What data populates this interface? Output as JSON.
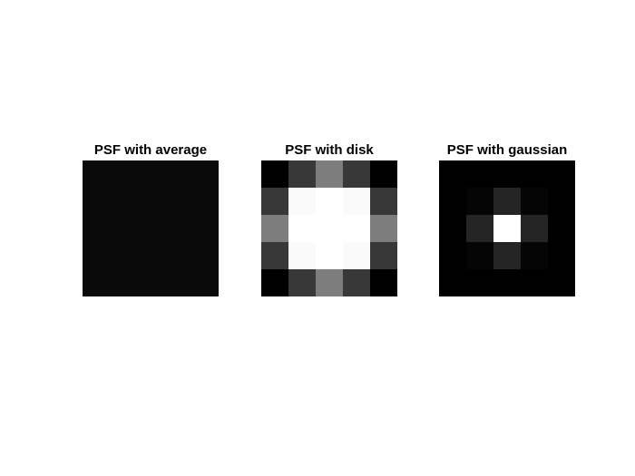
{
  "chart_data": [
    {
      "type": "heatmap",
      "title": "PSF with average",
      "rows": 5,
      "cols": 5,
      "colormap": "gray",
      "values": [
        [
          0.04,
          0.04,
          0.04,
          0.04,
          0.04
        ],
        [
          0.04,
          0.04,
          0.04,
          0.04,
          0.04
        ],
        [
          0.04,
          0.04,
          0.04,
          0.04,
          0.04
        ],
        [
          0.04,
          0.04,
          0.04,
          0.04,
          0.04
        ],
        [
          0.04,
          0.04,
          0.04,
          0.04,
          0.04
        ]
      ]
    },
    {
      "type": "heatmap",
      "title": "PSF with disk",
      "rows": 5,
      "cols": 5,
      "colormap": "gray",
      "values": [
        [
          0.0,
          0.22,
          0.49,
          0.22,
          0.0
        ],
        [
          0.22,
          0.98,
          1.0,
          0.98,
          0.22
        ],
        [
          0.49,
          1.0,
          1.0,
          1.0,
          0.49
        ],
        [
          0.22,
          0.98,
          1.0,
          0.98,
          0.22
        ],
        [
          0.0,
          0.22,
          0.49,
          0.22,
          0.0
        ]
      ]
    },
    {
      "type": "heatmap",
      "title": "PSF with gaussian",
      "rows": 5,
      "cols": 5,
      "colormap": "gray",
      "values": [
        [
          0.0,
          0.0,
          0.0,
          0.0,
          0.0
        ],
        [
          0.0,
          0.02,
          0.14,
          0.02,
          0.0
        ],
        [
          0.0,
          0.14,
          1.0,
          0.14,
          0.0
        ],
        [
          0.0,
          0.02,
          0.14,
          0.02,
          0.0
        ],
        [
          0.0,
          0.0,
          0.0,
          0.0,
          0.0
        ]
      ]
    }
  ]
}
